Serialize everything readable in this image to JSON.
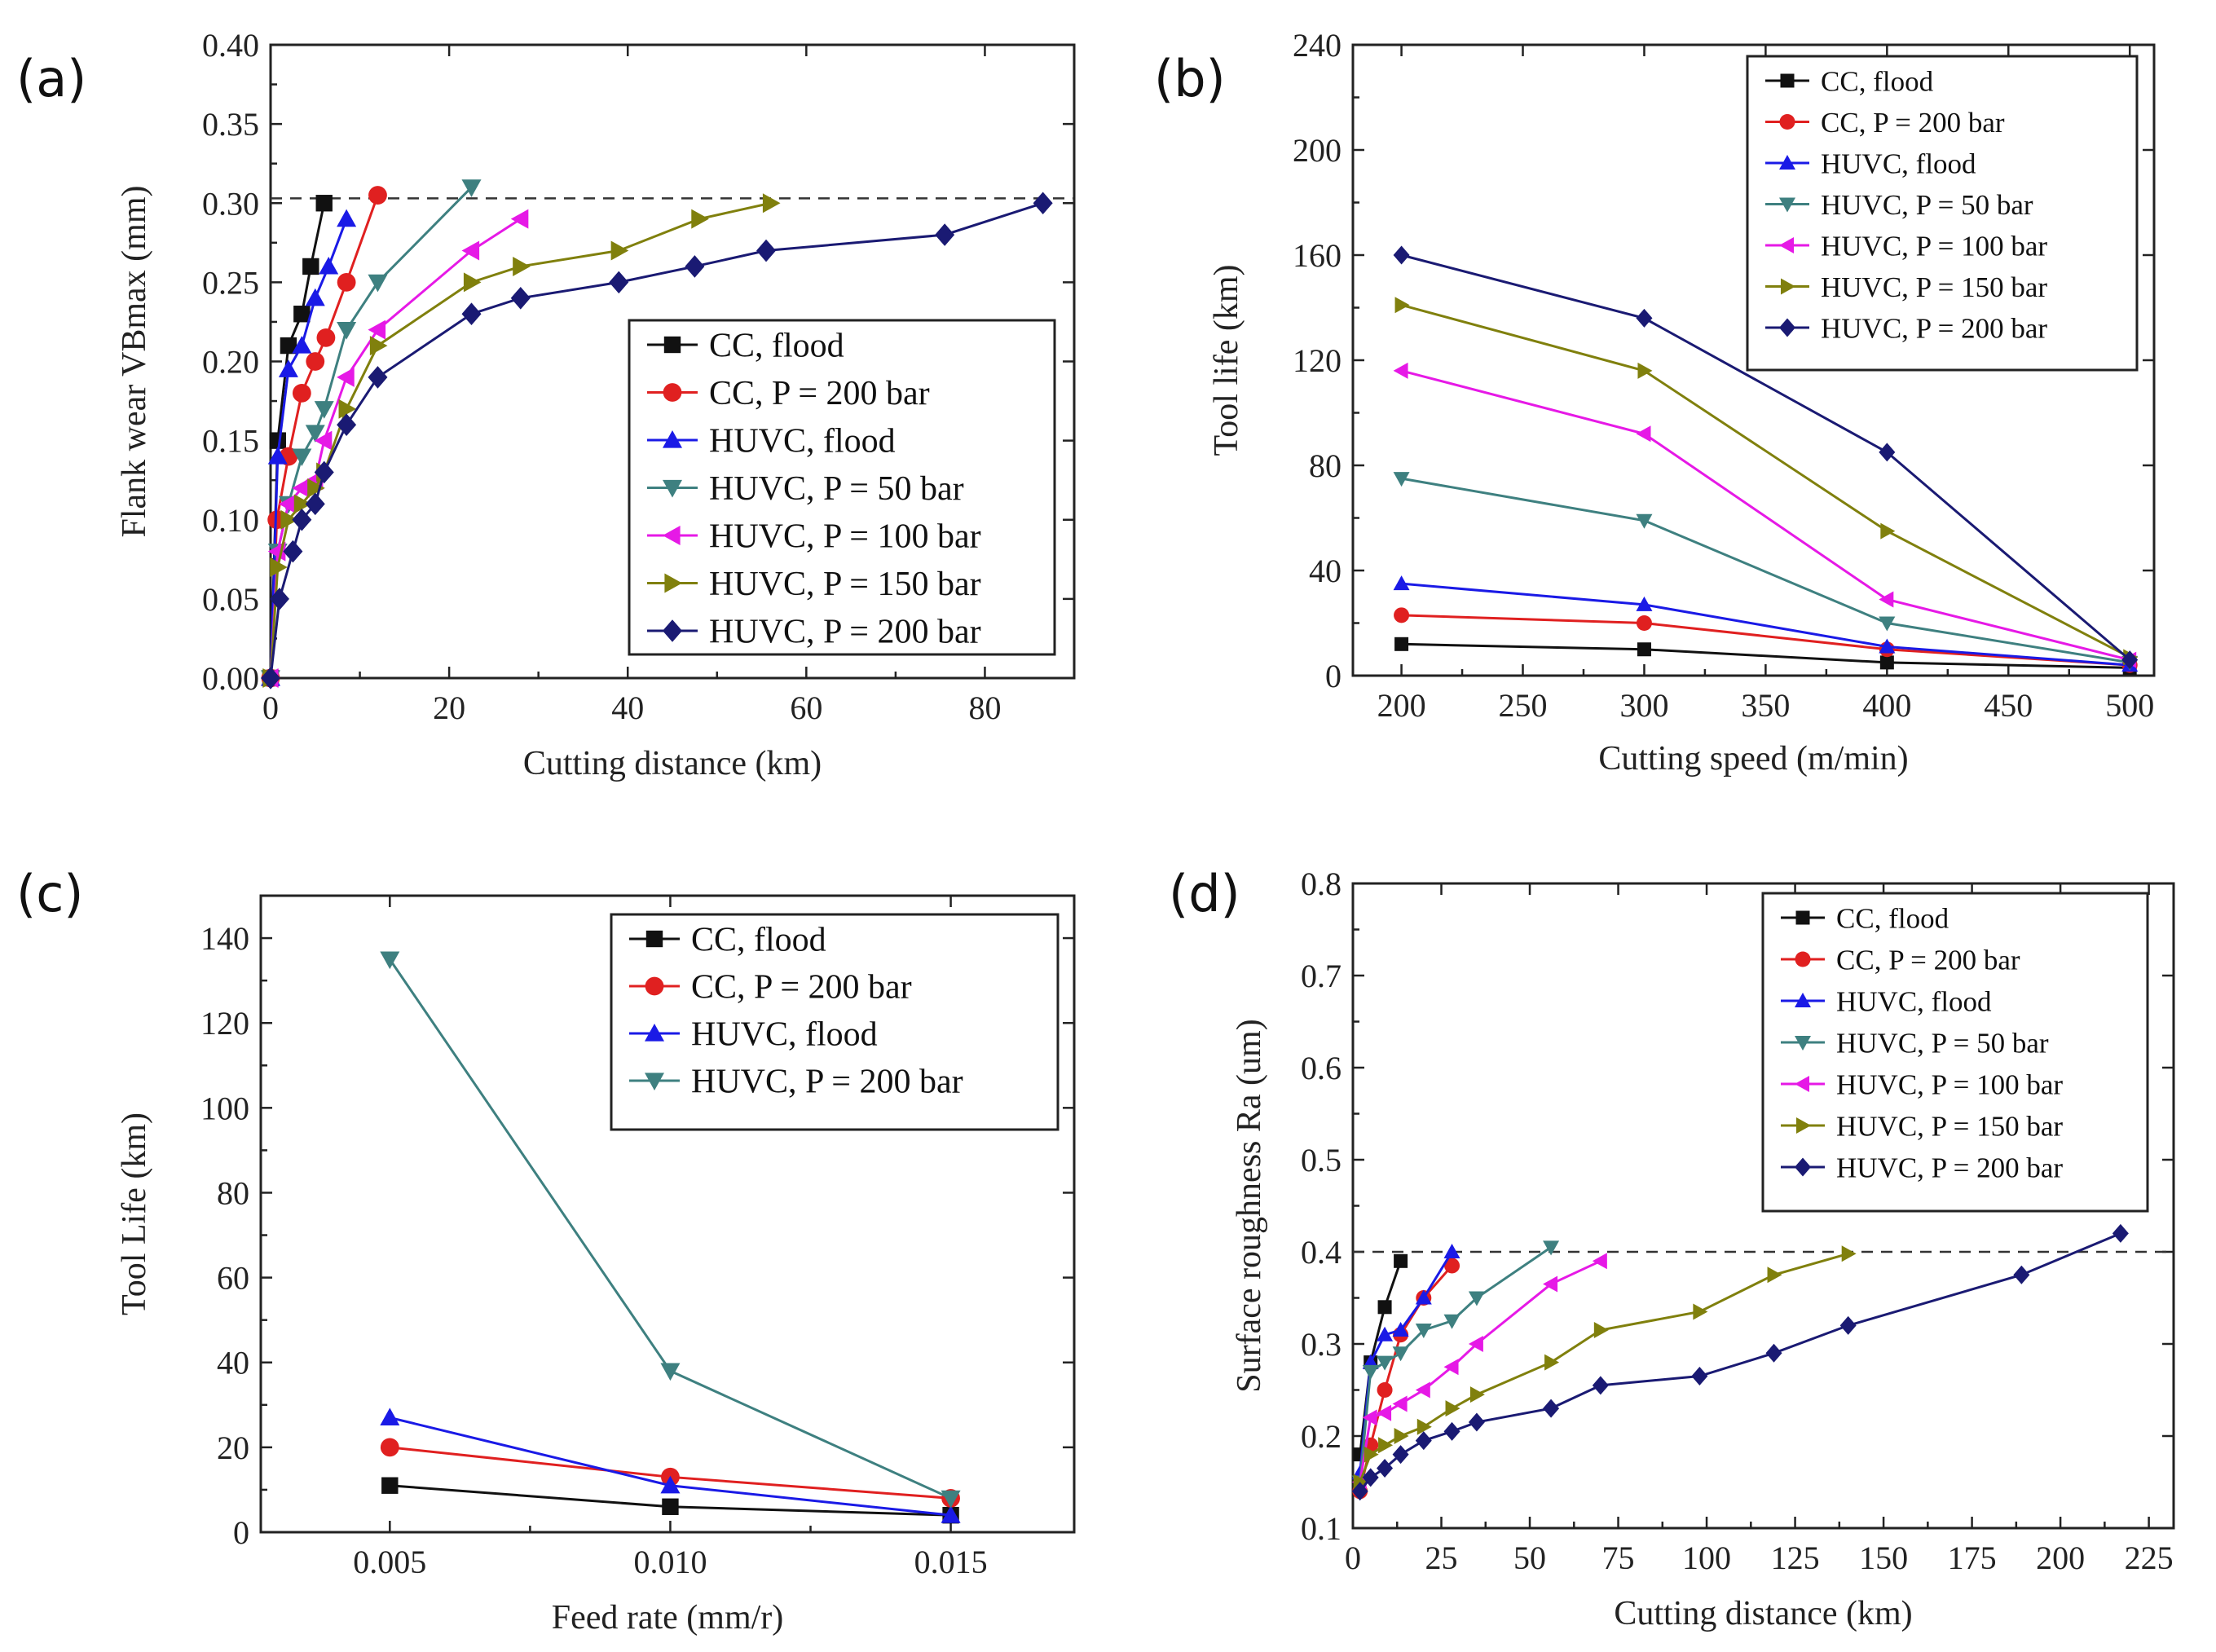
{
  "chart_data": [
    {
      "panel": "(a)",
      "type": "line",
      "xlabel": "Cutting distance (km)",
      "ylabel": "Flank wear VBmax (mm)",
      "xlim": [
        0,
        90
      ],
      "ylim": [
        0,
        0.4
      ],
      "xticks": [
        0,
        20,
        40,
        60,
        80
      ],
      "xtick_labels": [
        "0",
        "20",
        "40",
        "60",
        "80"
      ],
      "yticks": [
        0,
        0.05,
        0.1,
        0.15,
        0.2,
        0.25,
        0.3,
        0.35,
        0.4
      ],
      "ytick_labels": [
        "0.00",
        "0.05",
        "0.10",
        "0.15",
        "0.20",
        "0.25",
        "0.30",
        "0.35",
        "0.40"
      ],
      "reference_line": 0.303,
      "legend_location": "center-right",
      "series": [
        {
          "name": "CC, flood",
          "color": "#111111",
          "marker": "square",
          "x": [
            0,
            0.8,
            2,
            3.5,
            4.5,
            6
          ],
          "y": [
            0,
            0.15,
            0.21,
            0.23,
            0.26,
            0.3
          ]
        },
        {
          "name": "CC, P = 200 bar",
          "color": "#e02020",
          "marker": "circle",
          "x": [
            0,
            0.7,
            2,
            3.5,
            5,
            6.2,
            8.5,
            12
          ],
          "y": [
            0,
            0.1,
            0.14,
            0.18,
            0.2,
            0.215,
            0.25,
            0.305
          ]
        },
        {
          "name": "HUVC, flood",
          "color": "#1a1ae6",
          "marker": "triangle-up",
          "x": [
            0,
            0.8,
            2,
            3.5,
            5,
            6.5,
            8.5
          ],
          "y": [
            0,
            0.14,
            0.195,
            0.21,
            0.24,
            0.26,
            0.29
          ]
        },
        {
          "name": "HUVC, P =  50 bar",
          "color": "#3e8080",
          "marker": "triangle-down",
          "x": [
            0,
            0.8,
            2,
            3.5,
            5,
            6,
            8.5,
            12,
            22.5
          ],
          "y": [
            0,
            0.08,
            0.11,
            0.14,
            0.155,
            0.17,
            0.22,
            0.25,
            0.31
          ]
        },
        {
          "name": "HUVC, P =  100 bar",
          "color": "#e619e6",
          "marker": "triangle-left",
          "x": [
            0,
            0.8,
            2,
            3.5,
            5,
            6,
            8.5,
            12,
            22.5,
            28
          ],
          "y": [
            0,
            0.08,
            0.11,
            0.12,
            0.125,
            0.15,
            0.19,
            0.22,
            0.27,
            0.29
          ]
        },
        {
          "name": "HUVC, P =  150 bar",
          "color": "#80800d",
          "marker": "triangle-right",
          "x": [
            0,
            0.8,
            2,
            3.5,
            5,
            6,
            8.5,
            12,
            22.5,
            28,
            39,
            48,
            56
          ],
          "y": [
            0,
            0.07,
            0.1,
            0.11,
            0.12,
            0.13,
            0.17,
            0.21,
            0.25,
            0.26,
            0.27,
            0.29,
            0.3
          ]
        },
        {
          "name": "HUVC, P =  200 bar",
          "color": "#1a1a73",
          "marker": "diamond",
          "x": [
            0,
            1,
            2.5,
            3.5,
            5,
            6,
            8.5,
            12,
            22.5,
            28,
            39,
            47.5,
            55.5,
            75.5,
            86.5
          ],
          "y": [
            0,
            0.05,
            0.08,
            0.1,
            0.11,
            0.13,
            0.16,
            0.19,
            0.23,
            0.24,
            0.25,
            0.26,
            0.27,
            0.28,
            0.3
          ]
        }
      ]
    },
    {
      "panel": "(b)",
      "type": "line",
      "xlabel": "Cutting speed (m/min)",
      "ylabel": "Tool life (km)",
      "xlim": [
        180,
        510
      ],
      "ylim": [
        0,
        240
      ],
      "xticks": [
        200,
        250,
        300,
        350,
        400,
        450,
        500
      ],
      "xtick_labels": [
        "200",
        "250",
        "300",
        "350",
        "400",
        "450",
        "500"
      ],
      "yticks": [
        0,
        40,
        80,
        120,
        160,
        200,
        240
      ],
      "ytick_labels": [
        "0",
        "40",
        "80",
        "120",
        "160",
        "200",
        "240"
      ],
      "legend_location": "top-right",
      "series": [
        {
          "name": "CC, flood",
          "color": "#111111",
          "marker": "square",
          "x": [
            200,
            300,
            400,
            500
          ],
          "y": [
            12,
            10,
            5,
            3
          ]
        },
        {
          "name": "CC, P = 200 bar",
          "color": "#e02020",
          "marker": "circle",
          "x": [
            200,
            300,
            400,
            500
          ],
          "y": [
            23,
            20,
            10,
            4
          ]
        },
        {
          "name": "HUVC, flood",
          "color": "#1a1ae6",
          "marker": "triangle-up",
          "x": [
            200,
            300,
            400,
            500
          ],
          "y": [
            35,
            27,
            11,
            4
          ]
        },
        {
          "name": "HUVC, P = 50 bar",
          "color": "#3e8080",
          "marker": "triangle-down",
          "x": [
            200,
            300,
            400,
            500
          ],
          "y": [
            75,
            59,
            20,
            5
          ]
        },
        {
          "name": "HUVC, P = 100 bar",
          "color": "#e619e6",
          "marker": "triangle-left",
          "x": [
            200,
            300,
            400,
            500
          ],
          "y": [
            116,
            92,
            29,
            6
          ]
        },
        {
          "name": "HUVC, P = 150 bar",
          "color": "#80800d",
          "marker": "triangle-right",
          "x": [
            200,
            300,
            400,
            500
          ],
          "y": [
            141,
            116,
            55,
            7
          ]
        },
        {
          "name": "HUVC, P = 200 bar",
          "color": "#1a1a73",
          "marker": "diamond",
          "x": [
            200,
            300,
            400,
            500
          ],
          "y": [
            160,
            136,
            85,
            6
          ]
        }
      ]
    },
    {
      "panel": "(c)",
      "type": "line",
      "xlabel": "Feed rate (mm/r)",
      "ylabel": "Tool Life (km)",
      "xlim": [
        0.0027,
        0.0172
      ],
      "ylim": [
        0,
        150
      ],
      "xticks": [
        0.005,
        0.01,
        0.015
      ],
      "xtick_labels": [
        "0.005",
        "0.010",
        "0.015"
      ],
      "yticks": [
        0,
        20,
        40,
        60,
        80,
        100,
        120,
        140
      ],
      "ytick_labels": [
        "0",
        "20",
        "40",
        "60",
        "80",
        "100",
        "120",
        "140"
      ],
      "legend_location": "top-right",
      "series": [
        {
          "name": "CC, flood",
          "color": "#111111",
          "marker": "square",
          "x": [
            0.005,
            0.01,
            0.015
          ],
          "y": [
            11,
            6,
            4
          ]
        },
        {
          "name": "CC, P = 200 bar",
          "color": "#e02020",
          "marker": "circle",
          "x": [
            0.005,
            0.01,
            0.015
          ],
          "y": [
            20,
            13,
            8
          ]
        },
        {
          "name": "HUVC, flood",
          "color": "#1a1ae6",
          "marker": "triangle-up",
          "x": [
            0.005,
            0.01,
            0.015
          ],
          "y": [
            27,
            11,
            4
          ]
        },
        {
          "name": "HUVC, P = 200 bar",
          "color": "#3e8080",
          "marker": "triangle-down",
          "x": [
            0.005,
            0.01,
            0.015
          ],
          "y": [
            135,
            38,
            8
          ]
        }
      ]
    },
    {
      "panel": "(d)",
      "type": "line",
      "xlabel": "Cutting distance (km)",
      "ylabel": "Surface roughness Ra (um)",
      "xlim": [
        0,
        232
      ],
      "ylim": [
        0.1,
        0.8
      ],
      "xticks": [
        0,
        25,
        50,
        75,
        100,
        125,
        150,
        175,
        200,
        225
      ],
      "xtick_labels": [
        "0",
        "25",
        "50",
        "75",
        "100",
        "125",
        "150",
        "175",
        "200",
        "225"
      ],
      "yticks": [
        0.1,
        0.2,
        0.3,
        0.4,
        0.5,
        0.6,
        0.7,
        0.8
      ],
      "ytick_labels": [
        "0.1",
        "0.2",
        "0.3",
        "0.4",
        "0.5",
        "0.6",
        "0.7",
        "0.8"
      ],
      "reference_line": 0.4,
      "legend_location": "top-right",
      "series": [
        {
          "name": "CC, flood",
          "color": "#111111",
          "marker": "square",
          "x": [
            2,
            5,
            9,
            13.5
          ],
          "y": [
            0.18,
            0.28,
            0.34,
            0.39
          ]
        },
        {
          "name": "CC, P = 200 bar",
          "color": "#e02020",
          "marker": "circle",
          "x": [
            2,
            5,
            9,
            13.5,
            20,
            28
          ],
          "y": [
            0.14,
            0.19,
            0.25,
            0.31,
            0.35,
            0.385
          ]
        },
        {
          "name": "HUVC, flood",
          "color": "#1a1ae6",
          "marker": "triangle-up",
          "x": [
            2,
            5,
            9,
            13.5,
            20,
            28
          ],
          "y": [
            0.16,
            0.28,
            0.31,
            0.315,
            0.35,
            0.4
          ]
        },
        {
          "name": "HUVC, P = 50 bar",
          "color": "#3e8080",
          "marker": "triangle-down",
          "x": [
            2,
            5,
            9,
            13.5,
            20,
            28,
            35,
            56
          ],
          "y": [
            0.15,
            0.27,
            0.28,
            0.29,
            0.315,
            0.325,
            0.35,
            0.405
          ]
        },
        {
          "name": "HUVC, P = 100 bar",
          "color": "#e619e6",
          "marker": "triangle-left",
          "x": [
            2,
            5,
            9,
            13.5,
            20,
            28,
            35,
            56,
            70
          ],
          "y": [
            0.15,
            0.22,
            0.225,
            0.235,
            0.25,
            0.275,
            0.3,
            0.365,
            0.39
          ]
        },
        {
          "name": "HUVC, P = 150 bar",
          "color": "#80800d",
          "marker": "triangle-right",
          "x": [
            2,
            5,
            9,
            13.5,
            20,
            28,
            35,
            56,
            70,
            98,
            119,
            140
          ],
          "y": [
            0.15,
            0.18,
            0.19,
            0.2,
            0.21,
            0.23,
            0.245,
            0.28,
            0.315,
            0.335,
            0.375,
            0.398
          ]
        },
        {
          "name": "HUVC, P = 200 bar",
          "color": "#1a1a73",
          "marker": "diamond",
          "x": [
            2,
            5,
            9,
            13.5,
            20,
            28,
            35,
            56,
            70,
            98,
            119,
            140,
            189,
            217
          ],
          "y": [
            0.14,
            0.155,
            0.165,
            0.18,
            0.195,
            0.205,
            0.215,
            0.23,
            0.255,
            0.265,
            0.29,
            0.32,
            0.375,
            0.42
          ]
        }
      ]
    }
  ]
}
